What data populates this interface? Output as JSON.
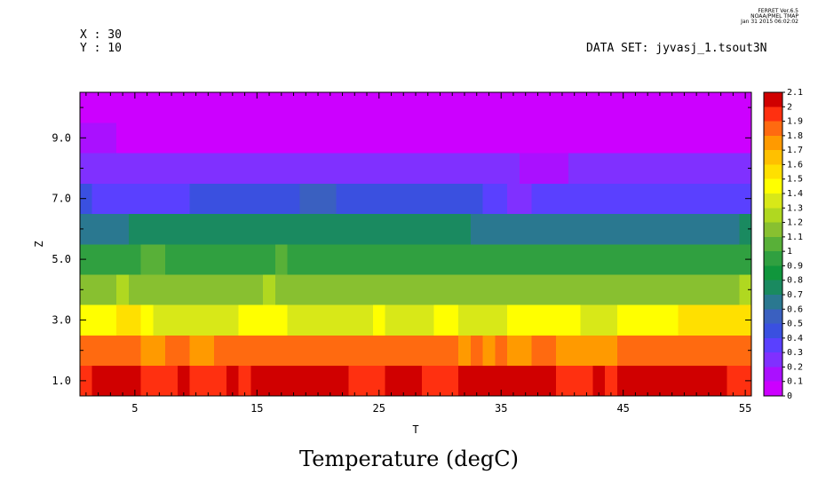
{
  "header": {
    "x_label": "X : 30",
    "y_label": "Y : 10",
    "dataset_label": "DATA SET: jyvasj_1.tsout3N",
    "stamp_line1": "FERRET Ver.6.5",
    "stamp_line2": "NOAA/PMEL TMAP",
    "stamp_line3": "Jan 31 2015 06:02:02"
  },
  "chart_data": {
    "type": "heatmap",
    "title": "Temperature (degC)",
    "xlabel": "T",
    "ylabel": "Z",
    "xlim": [
      0.5,
      55.5
    ],
    "ylim": [
      0.5,
      10.5
    ],
    "x_ticks": [
      5,
      15,
      25,
      35,
      45,
      55
    ],
    "x_tick_labels": [
      "5",
      "15",
      "25",
      "35",
      "45",
      "55"
    ],
    "y_ticks": [
      1,
      3,
      5,
      7,
      9
    ],
    "y_tick_labels": [
      "1.0",
      "3.0",
      "5.0",
      "7.0",
      "9.0"
    ],
    "colorbar": {
      "min": 0,
      "max": 2.1,
      "step": 0.1,
      "labels": [
        "0",
        "0.1",
        "0.2",
        "0.3",
        "0.4",
        "0.5",
        "0.6",
        "0.7",
        "0.8",
        "0.9",
        "1",
        "1.1",
        "1.2",
        "1.3",
        "1.4",
        "1.5",
        "1.6",
        "1.7",
        "1.8",
        "1.9",
        "2",
        "2.1"
      ],
      "colors": [
        "#cc00ff",
        "#aa10ff",
        "#8030ff",
        "#5a40ff",
        "#3a50e0",
        "#3a60c0",
        "#2a7890",
        "#1a8a60",
        "#10963c",
        "#30a040",
        "#58b038",
        "#88c030",
        "#b0d820",
        "#d8e818",
        "#ffff00",
        "#ffe000",
        "#ffc000",
        "#ff9a00",
        "#ff6a10",
        "#ff3010",
        "#d00000",
        "#a00000"
      ]
    },
    "rows": [
      {
        "z": 1,
        "values": [
          1.93,
          2.06,
          2.08,
          2.08,
          2.06,
          1.95,
          1.96,
          1.96,
          2.0,
          1.98,
          1.98,
          1.98,
          2.0,
          1.96,
          2.0,
          2.0,
          2.0,
          2.0,
          2.0,
          2.0,
          2.0,
          2.0,
          1.96,
          1.96,
          1.96,
          2.0,
          2.0,
          2.0,
          1.97,
          1.97,
          1.97,
          2.0,
          2.0,
          2.0,
          2.0,
          2.0,
          2.0,
          2.0,
          2.0,
          1.96,
          1.96,
          1.96,
          2.0,
          1.96,
          2.0,
          2.0,
          2.05,
          2.05,
          2.0,
          2.0,
          2.0,
          2.0,
          2.0,
          1.96,
          1.96
        ]
      },
      {
        "z": 2,
        "values": [
          1.8,
          1.8,
          1.8,
          1.8,
          1.8,
          1.72,
          1.72,
          1.8,
          1.8,
          1.72,
          1.72,
          1.8,
          1.8,
          1.8,
          1.8,
          1.8,
          1.8,
          1.8,
          1.8,
          1.8,
          1.8,
          1.8,
          1.8,
          1.8,
          1.8,
          1.8,
          1.8,
          1.8,
          1.8,
          1.8,
          1.8,
          1.72,
          1.8,
          1.72,
          1.8,
          1.76,
          1.76,
          1.8,
          1.8,
          1.76,
          1.76,
          1.76,
          1.76,
          1.76,
          1.8,
          1.8,
          1.8,
          1.8,
          1.8,
          1.8,
          1.85,
          1.8,
          1.8,
          1.8,
          1.8
        ]
      },
      {
        "z": 3,
        "values": [
          1.45,
          1.45,
          1.45,
          1.52,
          1.52,
          1.45,
          1.38,
          1.38,
          1.38,
          1.38,
          1.38,
          1.38,
          1.38,
          1.45,
          1.45,
          1.45,
          1.45,
          1.38,
          1.38,
          1.38,
          1.38,
          1.38,
          1.38,
          1.38,
          1.45,
          1.38,
          1.38,
          1.38,
          1.38,
          1.45,
          1.45,
          1.38,
          1.38,
          1.38,
          1.38,
          1.45,
          1.45,
          1.45,
          1.45,
          1.45,
          1.45,
          1.38,
          1.38,
          1.38,
          1.45,
          1.45,
          1.45,
          1.45,
          1.45,
          1.52,
          1.52,
          1.52,
          1.52,
          1.52,
          1.52
        ]
      },
      {
        "z": 4,
        "values": [
          1.15,
          1.15,
          1.15,
          1.25,
          1.15,
          1.15,
          1.15,
          1.15,
          1.15,
          1.15,
          1.15,
          1.15,
          1.15,
          1.15,
          1.15,
          1.25,
          1.15,
          1.15,
          1.15,
          1.15,
          1.15,
          1.15,
          1.15,
          1.15,
          1.15,
          1.15,
          1.15,
          1.15,
          1.1,
          1.1,
          1.1,
          1.15,
          1.15,
          1.1,
          1.1,
          1.1,
          1.15,
          1.1,
          1.15,
          1.15,
          1.15,
          1.1,
          1.1,
          1.15,
          1.1,
          1.1,
          1.1,
          1.1,
          1.15,
          1.15,
          1.15,
          1.15,
          1.15,
          1.15,
          1.25
        ]
      },
      {
        "z": 5,
        "values": [
          0.97,
          0.97,
          0.97,
          0.97,
          0.97,
          1.02,
          1.02,
          0.97,
          0.97,
          0.97,
          0.92,
          0.97,
          0.97,
          0.92,
          0.97,
          0.97,
          1.02,
          0.97,
          0.97,
          0.97,
          0.97,
          0.97,
          0.97,
          0.97,
          0.97,
          0.97,
          0.97,
          0.97,
          0.97,
          0.92,
          0.92,
          0.92,
          0.97,
          0.97,
          0.92,
          0.92,
          0.92,
          0.92,
          0.92,
          0.92,
          0.92,
          0.92,
          0.92,
          0.92,
          0.92,
          0.97,
          0.97,
          0.97,
          0.92,
          0.97,
          0.92,
          0.92,
          0.92,
          0.92,
          0.92
        ]
      },
      {
        "z": 6,
        "values": [
          0.62,
          0.62,
          0.7,
          0.7,
          0.75,
          0.75,
          0.75,
          0.75,
          0.75,
          0.75,
          0.75,
          0.75,
          0.75,
          0.75,
          0.75,
          0.75,
          0.75,
          0.75,
          0.72,
          0.72,
          0.72,
          0.72,
          0.72,
          0.72,
          0.72,
          0.72,
          0.72,
          0.72,
          0.72,
          0.72,
          0.72,
          0.72,
          0.68,
          0.68,
          0.68,
          0.68,
          0.68,
          0.68,
          0.68,
          0.68,
          0.68,
          0.68,
          0.68,
          0.68,
          0.68,
          0.68,
          0.68,
          0.68,
          0.68,
          0.68,
          0.68,
          0.68,
          0.68,
          0.68,
          0.72
        ]
      },
      {
        "z": 7,
        "values": [
          0.45,
          0.38,
          0.38,
          0.38,
          0.38,
          0.38,
          0.38,
          0.38,
          0.38,
          0.45,
          0.45,
          0.45,
          0.45,
          0.45,
          0.45,
          0.45,
          0.45,
          0.45,
          0.5,
          0.5,
          0.5,
          0.45,
          0.45,
          0.45,
          0.45,
          0.45,
          0.45,
          0.45,
          0.45,
          0.45,
          0.45,
          0.45,
          0.45,
          0.38,
          0.38,
          0.3,
          0.3,
          0.38,
          0.38,
          0.38,
          0.38,
          0.38,
          0.38,
          0.38,
          0.38,
          0.38,
          0.38,
          0.38,
          0.38,
          0.38,
          0.38,
          0.38,
          0.38,
          0.38,
          0.38
        ]
      },
      {
        "z": 8,
        "values": [
          0.2,
          0.2,
          0.2,
          0.2,
          0.2,
          0.2,
          0.2,
          0.2,
          0.2,
          0.2,
          0.2,
          0.2,
          0.2,
          0.2,
          0.2,
          0.2,
          0.2,
          0.27,
          0.27,
          0.27,
          0.27,
          0.27,
          0.2,
          0.2,
          0.2,
          0.2,
          0.2,
          0.2,
          0.2,
          0.2,
          0.2,
          0.2,
          0.2,
          0.2,
          0.2,
          0.2,
          0.15,
          0.15,
          0.15,
          0.15,
          0.2,
          0.2,
          0.2,
          0.2,
          0.2,
          0.2,
          0.2,
          0.2,
          0.2,
          0.2,
          0.2,
          0.2,
          0.2,
          0.2,
          0.2
        ]
      },
      {
        "z": 9,
        "values": [
          0.12,
          0.12,
          0.12,
          0.08,
          0.08,
          0.08,
          0.08,
          0.08,
          0.08,
          0.08,
          0.08,
          0.08,
          0.08,
          0.08,
          0.08,
          0.08,
          0.04,
          0.04,
          0.04,
          0.04,
          0.04,
          0.04,
          0.04,
          0.04,
          0.04,
          0.04,
          0.04,
          0.04,
          0.04,
          0.04,
          0.04,
          0.04,
          0.04,
          0.04,
          0.04,
          0.04,
          0.04,
          0.04,
          0.04,
          0.04,
          0.04,
          0.04,
          0.04,
          0.04,
          0.04,
          0.04,
          0.04,
          0.04,
          0.04,
          0.04,
          0.04,
          0.04,
          0.04,
          0.04,
          0.04
        ]
      },
      {
        "z": 10,
        "values": [
          0.04,
          0.04,
          0.04,
          0.04,
          0.04,
          0.04,
          0.04,
          0.04,
          0.04,
          0.04,
          0.04,
          0.04,
          0.04,
          0.04,
          0.04,
          0.04,
          0.04,
          0.04,
          0.04,
          0.04,
          0.04,
          0.04,
          0.04,
          0.04,
          0.04,
          0.04,
          0.04,
          0.04,
          0.04,
          0.04,
          0.04,
          0.04,
          0.04,
          0.04,
          0.04,
          0.04,
          0.04,
          0.04,
          0.04,
          0.04,
          0.04,
          0.04,
          0.04,
          0.04,
          0.04,
          0.04,
          0.04,
          0.04,
          0.04,
          0.04,
          0.04,
          0.04,
          0.04,
          0.04,
          0.04
        ]
      }
    ]
  }
}
